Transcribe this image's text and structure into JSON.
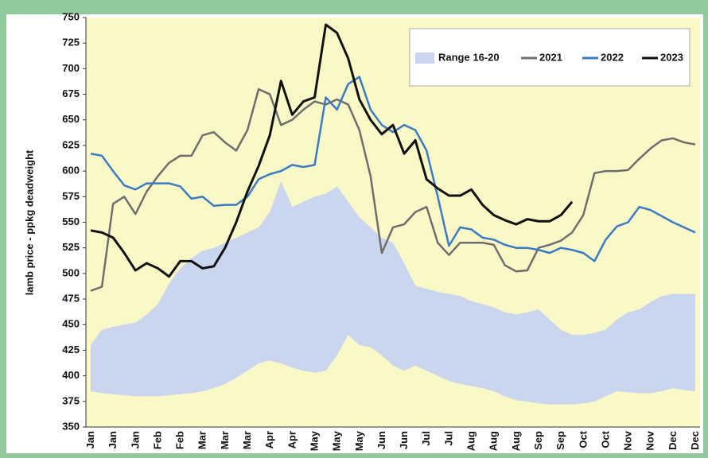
{
  "chart_data": {
    "type": "line",
    "y_label": "lamb price - ppkg deadweight",
    "categories": [
      "Jan",
      null,
      "Jan",
      null,
      "Jan",
      null,
      "Feb",
      null,
      "Feb",
      null,
      "Mar",
      null,
      "Mar",
      null,
      "Mar",
      null,
      "Apr",
      null,
      "Apr",
      null,
      "May",
      null,
      "May",
      null,
      "May",
      null,
      "Jun",
      null,
      "Jun",
      null,
      "Jul",
      null,
      "Jul",
      null,
      "Aug",
      null,
      "Aug",
      null,
      "Aug",
      null,
      "Sep",
      null,
      "Sep",
      null,
      "Oct",
      null,
      "Oct",
      null,
      "Nov",
      null,
      "Nov",
      null,
      "Dec",
      null,
      "Dec"
    ],
    "ylim": [
      350,
      750
    ],
    "yticks": [
      350,
      375,
      400,
      425,
      450,
      475,
      500,
      525,
      550,
      575,
      600,
      625,
      650,
      675,
      700,
      725,
      750
    ],
    "legend": "upper right",
    "band": {
      "name": "Range 16-20",
      "color": "#c9d6ee",
      "high": [
        430,
        445,
        448,
        450,
        452,
        460,
        470,
        490,
        505,
        515,
        522,
        525,
        530,
        535,
        540,
        545,
        560,
        590,
        565,
        570,
        575,
        578,
        585,
        570,
        555,
        545,
        535,
        530,
        510,
        488,
        485,
        482,
        480,
        478,
        473,
        470,
        467,
        462,
        460,
        462,
        465,
        455,
        445,
        440,
        440,
        442,
        445,
        455,
        462,
        465,
        472,
        478,
        480,
        480,
        480
      ],
      "low": [
        385,
        383,
        382,
        381,
        380,
        380,
        380,
        381,
        382,
        383,
        385,
        388,
        392,
        398,
        405,
        412,
        415,
        412,
        408,
        405,
        403,
        405,
        420,
        440,
        430,
        428,
        420,
        410,
        405,
        410,
        405,
        400,
        395,
        392,
        390,
        388,
        385,
        380,
        376,
        375,
        373,
        372,
        372,
        372,
        373,
        375,
        380,
        385,
        384,
        383,
        383,
        385,
        388,
        386,
        385
      ]
    },
    "series": [
      {
        "name": "2021",
        "color": "#6e6e6e",
        "values": [
          483,
          487,
          568,
          575,
          558,
          580,
          595,
          608,
          615,
          615,
          635,
          638,
          628,
          620,
          640,
          680,
          675,
          645,
          650,
          660,
          668,
          665,
          670,
          665,
          640,
          595,
          520,
          545,
          548,
          560,
          565,
          530,
          518,
          530,
          530,
          530,
          528,
          508,
          502,
          503,
          525,
          528,
          532,
          540,
          557,
          598,
          600,
          600,
          601,
          612,
          622,
          630,
          632,
          628,
          626
        ]
      },
      {
        "name": "2022",
        "color": "#3a7cc4",
        "values": [
          617,
          615,
          600,
          586,
          582,
          588,
          588,
          588,
          585,
          573,
          575,
          566,
          567,
          567,
          575,
          592,
          597,
          600,
          606,
          604,
          606,
          672,
          660,
          685,
          692,
          660,
          645,
          638,
          645,
          640,
          620,
          575,
          527,
          545,
          543,
          535,
          533,
          528,
          525,
          525,
          523,
          520,
          525,
          523,
          520,
          512,
          533,
          546,
          550,
          565,
          562,
          556,
          550,
          545,
          540
        ]
      },
      {
        "name": "2023",
        "color": "#111111",
        "values": [
          542,
          540,
          535,
          520,
          503,
          510,
          505,
          497,
          512,
          512,
          505,
          507,
          525,
          550,
          580,
          605,
          635,
          688,
          655,
          668,
          672,
          743,
          735,
          710,
          670,
          650,
          636,
          645,
          617,
          630,
          592,
          583,
          576,
          576,
          582,
          567,
          557,
          552,
          548,
          553,
          551,
          551,
          557,
          570,
          null,
          null,
          null,
          null,
          null,
          null,
          null,
          null,
          null,
          null,
          null
        ]
      }
    ]
  }
}
